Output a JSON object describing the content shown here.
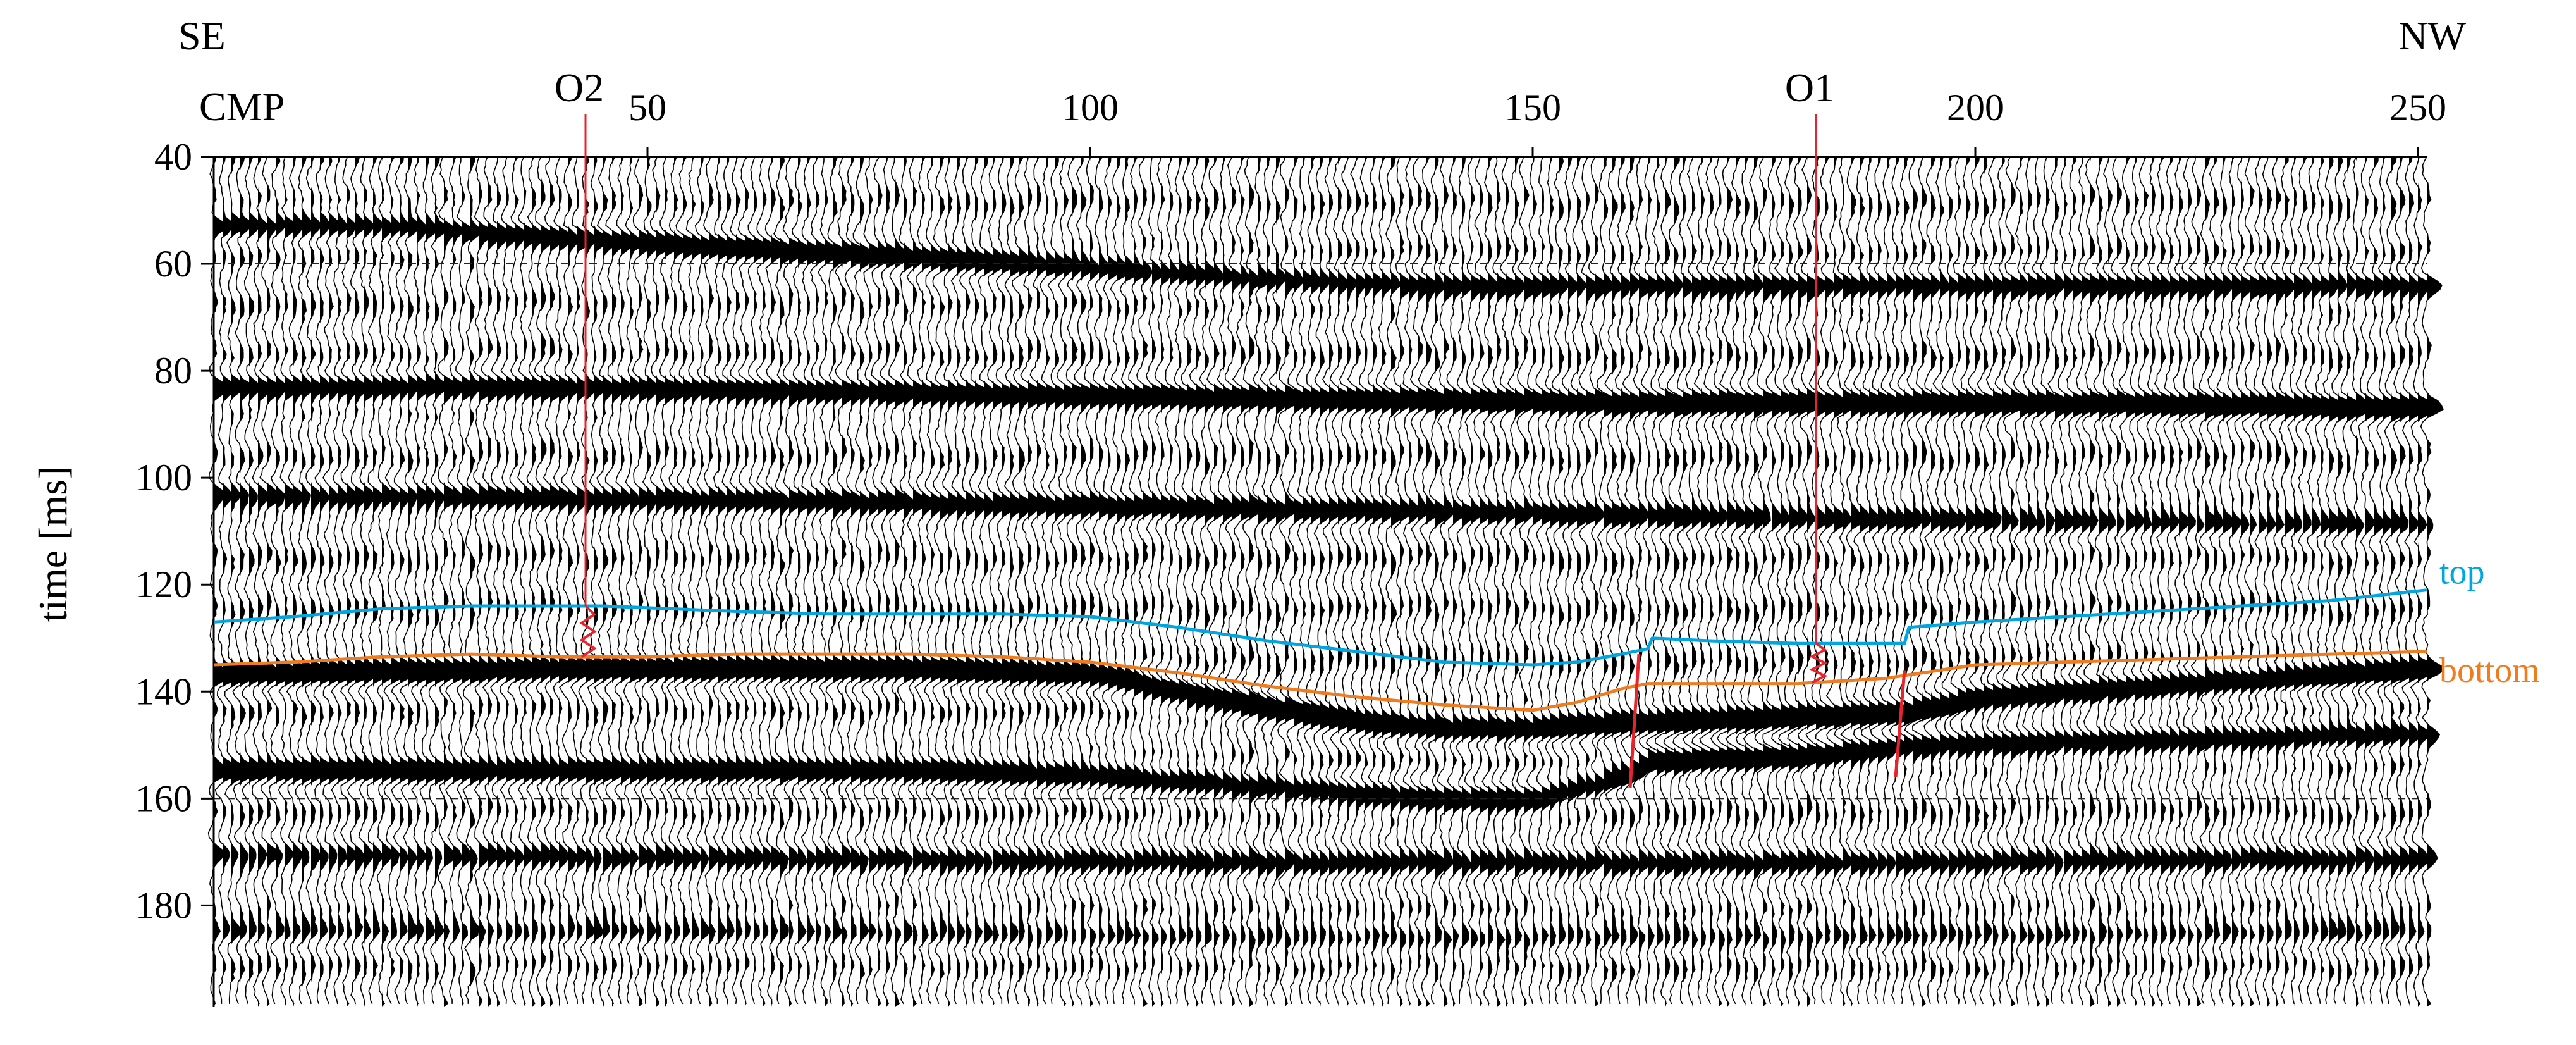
{
  "chart_data": {
    "type": "line",
    "direction_left": "SE",
    "direction_right": "NW",
    "x_axis_label": "CMP",
    "y_axis_label": "time [ms]",
    "xlim": [
      1,
      251
    ],
    "ylim": [
      40,
      199
    ],
    "x_ticks": [
      "50",
      "100",
      "150",
      "200",
      "250"
    ],
    "x_tick_values": [
      50,
      100,
      150,
      200,
      250
    ],
    "y_ticks": [
      "40",
      "60",
      "80",
      "100",
      "120",
      "140",
      "160",
      "180"
    ],
    "y_tick_values": [
      40,
      60,
      80,
      100,
      120,
      140,
      160,
      180
    ],
    "grid": "dashed horizontal at 60 and 160 ms",
    "colors": {
      "top": "#00a6e0",
      "bottom": "#f07c20",
      "markers": "#e8232b",
      "traces": "#000000"
    },
    "markers": [
      {
        "label": "O2",
        "x": 43
      },
      {
        "label": "O1",
        "x": 182
      }
    ],
    "faults": [
      {
        "x_top": 162,
        "x_bottom": 161,
        "t_top": 133,
        "t_bottom": 158
      },
      {
        "x_top": 192,
        "x_bottom": 191,
        "t_top": 136,
        "t_bottom": 156
      }
    ],
    "series": [
      {
        "name": "top",
        "x": [
          1,
          10,
          20,
          30,
          45,
          60,
          70,
          80,
          90,
          100,
          110,
          120,
          130,
          140,
          150,
          155,
          160,
          163,
          163.5,
          170,
          180,
          190,
          192,
          192.5,
          200,
          210,
          220,
          230,
          240,
          251
        ],
        "values": [
          127,
          126,
          124.5,
          124,
          124,
          125,
          125.5,
          125.5,
          125.5,
          126,
          128,
          130.5,
          132.5,
          134.5,
          135,
          134.5,
          133,
          132,
          130,
          130.5,
          131,
          131,
          131,
          128,
          127,
          126,
          125,
          124,
          123,
          121
        ]
      },
      {
        "name": "bottom",
        "x": [
          1,
          10,
          20,
          30,
          40,
          50,
          60,
          70,
          80,
          90,
          100,
          110,
          120,
          130,
          140,
          150,
          155,
          160,
          163,
          170,
          180,
          190,
          192,
          200,
          210,
          220,
          230,
          240,
          251
        ],
        "values": [
          135,
          134.5,
          133.5,
          133,
          133.5,
          133.5,
          133,
          133,
          133,
          133.5,
          134.5,
          136.5,
          139,
          141,
          142.5,
          143.5,
          142,
          139.5,
          138.5,
          138.5,
          138.5,
          137.5,
          137,
          135,
          134.5,
          134,
          133.5,
          133,
          132.5
        ]
      }
    ],
    "reflectors": [
      {
        "x": [
          1,
          20,
          40,
          60,
          80,
          100,
          120,
          140,
          150,
          160,
          175,
          200,
          251
        ],
        "t": [
          53,
          53,
          55,
          57,
          59,
          61,
          63,
          64,
          64,
          64,
          64,
          64,
          64
        ],
        "weight": 0.9
      },
      {
        "x": [
          1,
          40,
          80,
          120,
          160,
          200,
          251
        ],
        "t": [
          83,
          83,
          84,
          85,
          86,
          86,
          87
        ],
        "weight": 1.0
      },
      {
        "x": [
          1,
          60,
          120,
          180,
          251
        ],
        "t": [
          103,
          104,
          106,
          108,
          109
        ],
        "weight": 0.7
      },
      {
        "x": [
          1,
          20,
          40,
          60,
          80,
          100,
          110,
          120,
          130,
          140,
          150,
          160,
          163,
          180,
          192,
          200,
          220,
          251
        ],
        "t": [
          137,
          136.5,
          136,
          136,
          136,
          137,
          140,
          143,
          146,
          147,
          147,
          146,
          146,
          145,
          144,
          141,
          139,
          136
        ],
        "weight": 1.2
      },
      {
        "x": [
          1,
          40,
          80,
          100,
          120,
          140,
          150,
          160,
          163,
          180,
          192,
          220,
          251
        ],
        "t": [
          155,
          155,
          155,
          156,
          158,
          160,
          160,
          156,
          153,
          152,
          150,
          149,
          148
        ],
        "weight": 1.0
      },
      {
        "x": [
          1,
          60,
          120,
          180,
          251
        ],
        "t": [
          170,
          171,
          172,
          172,
          171
        ],
        "weight": 0.5
      },
      {
        "x": [
          1,
          60,
          120,
          180,
          251
        ],
        "t": [
          185,
          185,
          186,
          186,
          185
        ],
        "weight": 0.55
      }
    ]
  }
}
